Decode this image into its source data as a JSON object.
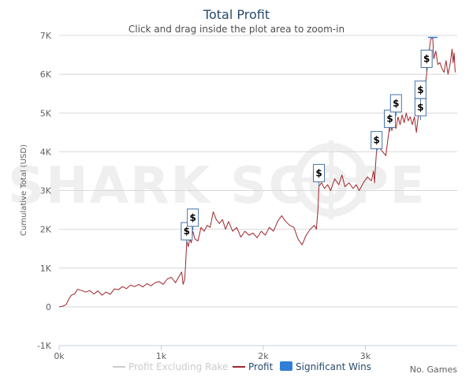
{
  "chart_data": {
    "type": "line",
    "title": "Total Profit",
    "subtitle": "Click and drag inside the plot area to zoom-in",
    "ylabel": "Cumulative Total (USD)",
    "xlabel": "No. Games",
    "watermark": "SHARK SCOPE",
    "xlim": [
      0,
      3900
    ],
    "ylim": [
      -1000,
      7000
    ],
    "x_ticks": [
      0,
      1000,
      2000,
      3000
    ],
    "x_tick_labels": [
      "0k",
      "1k",
      "2k",
      "3k"
    ],
    "y_ticks": [
      -1000,
      0,
      1000,
      2000,
      3000,
      4000,
      5000,
      6000,
      7000
    ],
    "y_tick_labels": [
      "-1K",
      "0",
      "1K",
      "2K",
      "3K",
      "4K",
      "5K",
      "6K",
      "7K"
    ],
    "series": [
      {
        "name": "Profit",
        "color": "#a0262b",
        "points": [
          [
            0,
            0
          ],
          [
            40,
            20
          ],
          [
            70,
            60
          ],
          [
            90,
            180
          ],
          [
            120,
            300
          ],
          [
            150,
            330
          ],
          [
            180,
            450
          ],
          [
            220,
            420
          ],
          [
            260,
            380
          ],
          [
            300,
            420
          ],
          [
            340,
            330
          ],
          [
            380,
            410
          ],
          [
            420,
            300
          ],
          [
            460,
            380
          ],
          [
            500,
            320
          ],
          [
            540,
            460
          ],
          [
            580,
            440
          ],
          [
            620,
            520
          ],
          [
            660,
            470
          ],
          [
            700,
            560
          ],
          [
            740,
            520
          ],
          [
            780,
            580
          ],
          [
            820,
            510
          ],
          [
            860,
            600
          ],
          [
            900,
            540
          ],
          [
            940,
            620
          ],
          [
            980,
            650
          ],
          [
            1020,
            580
          ],
          [
            1060,
            720
          ],
          [
            1100,
            760
          ],
          [
            1140,
            620
          ],
          [
            1180,
            810
          ],
          [
            1200,
            900
          ],
          [
            1215,
            580
          ],
          [
            1230,
            700
          ],
          [
            1240,
            1150
          ],
          [
            1250,
            1700
          ],
          [
            1265,
            1550
          ],
          [
            1280,
            1750
          ],
          [
            1295,
            1650
          ],
          [
            1310,
            1950
          ],
          [
            1330,
            1750
          ],
          [
            1360,
            1700
          ],
          [
            1390,
            2050
          ],
          [
            1420,
            1950
          ],
          [
            1450,
            2100
          ],
          [
            1480,
            2050
          ],
          [
            1510,
            2450
          ],
          [
            1540,
            2250
          ],
          [
            1570,
            2150
          ],
          [
            1600,
            2250
          ],
          [
            1630,
            2000
          ],
          [
            1660,
            2200
          ],
          [
            1700,
            1950
          ],
          [
            1740,
            2050
          ],
          [
            1780,
            1800
          ],
          [
            1820,
            1950
          ],
          [
            1860,
            1850
          ],
          [
            1900,
            1900
          ],
          [
            1940,
            1780
          ],
          [
            1980,
            1950
          ],
          [
            2020,
            1850
          ],
          [
            2060,
            2050
          ],
          [
            2100,
            1950
          ],
          [
            2140,
            2200
          ],
          [
            2180,
            2350
          ],
          [
            2220,
            2200
          ],
          [
            2260,
            2100
          ],
          [
            2300,
            2050
          ],
          [
            2340,
            1750
          ],
          [
            2380,
            1600
          ],
          [
            2420,
            1850
          ],
          [
            2460,
            2000
          ],
          [
            2500,
            2100
          ],
          [
            2520,
            2000
          ],
          [
            2535,
            2500
          ],
          [
            2545,
            3100
          ],
          [
            2570,
            3200
          ],
          [
            2600,
            3050
          ],
          [
            2630,
            3150
          ],
          [
            2660,
            3000
          ],
          [
            2700,
            3300
          ],
          [
            2740,
            3150
          ],
          [
            2770,
            3400
          ],
          [
            2800,
            3100
          ],
          [
            2840,
            3200
          ],
          [
            2880,
            3050
          ],
          [
            2910,
            3150
          ],
          [
            2940,
            3000
          ],
          [
            2980,
            3200
          ],
          [
            3020,
            3350
          ],
          [
            3060,
            3250
          ],
          [
            3080,
            3500
          ],
          [
            3090,
            3200
          ],
          [
            3100,
            3650
          ],
          [
            3110,
            4050
          ],
          [
            3140,
            4100
          ],
          [
            3170,
            4000
          ],
          [
            3200,
            3900
          ],
          [
            3220,
            4300
          ],
          [
            3240,
            4700
          ],
          [
            3260,
            4550
          ],
          [
            3280,
            4800
          ],
          [
            3300,
            4600
          ],
          [
            3320,
            4900
          ],
          [
            3340,
            4700
          ],
          [
            3360,
            4950
          ],
          [
            3380,
            4750
          ],
          [
            3400,
            5000
          ],
          [
            3420,
            4800
          ],
          [
            3440,
            4900
          ],
          [
            3460,
            4700
          ],
          [
            3480,
            4900
          ],
          [
            3500,
            4500
          ],
          [
            3520,
            4950
          ],
          [
            3540,
            5000
          ],
          [
            3560,
            5200
          ],
          [
            3580,
            5600
          ],
          [
            3600,
            6000
          ],
          [
            3620,
            6500
          ],
          [
            3640,
            6900
          ],
          [
            3660,
            6950
          ],
          [
            3670,
            6400
          ],
          [
            3690,
            6600
          ],
          [
            3710,
            6250
          ],
          [
            3730,
            6300
          ],
          [
            3750,
            6150
          ],
          [
            3770,
            6050
          ],
          [
            3790,
            6350
          ],
          [
            3810,
            6000
          ],
          [
            3830,
            6250
          ],
          [
            3850,
            6650
          ],
          [
            3860,
            6300
          ],
          [
            3870,
            6550
          ],
          [
            3880,
            6050
          ]
        ]
      }
    ],
    "significant_wins": [
      {
        "x": 1250,
        "y": 1950,
        "label": "$"
      },
      {
        "x": 1310,
        "y": 2300,
        "label": "$"
      },
      {
        "x": 2545,
        "y": 3450,
        "label": "$"
      },
      {
        "x": 3110,
        "y": 4300,
        "label": "$"
      },
      {
        "x": 3240,
        "y": 4850,
        "label": "$"
      },
      {
        "x": 3300,
        "y": 5250,
        "label": "$"
      },
      {
        "x": 3540,
        "y": 5150,
        "label": "$"
      },
      {
        "x": 3540,
        "y": 5600,
        "label": "$"
      },
      {
        "x": 3600,
        "y": 6400,
        "label": "$"
      }
    ],
    "legend": [
      {
        "name": "Profit Excluding Rake",
        "color": "#cccccc",
        "style": "line"
      },
      {
        "name": "Profit",
        "color": "#a0262b",
        "style": "line"
      },
      {
        "name": "Significant Wins",
        "color": "#2f7ed8",
        "style": "box"
      }
    ],
    "colors": {
      "title": "#274b6d",
      "grid": "#d8d8d8",
      "axis": "#c0d0e0",
      "flag_border": "#4572a7",
      "legend_text": "#274b6d",
      "legend_text_dim": "#cccccc"
    }
  }
}
